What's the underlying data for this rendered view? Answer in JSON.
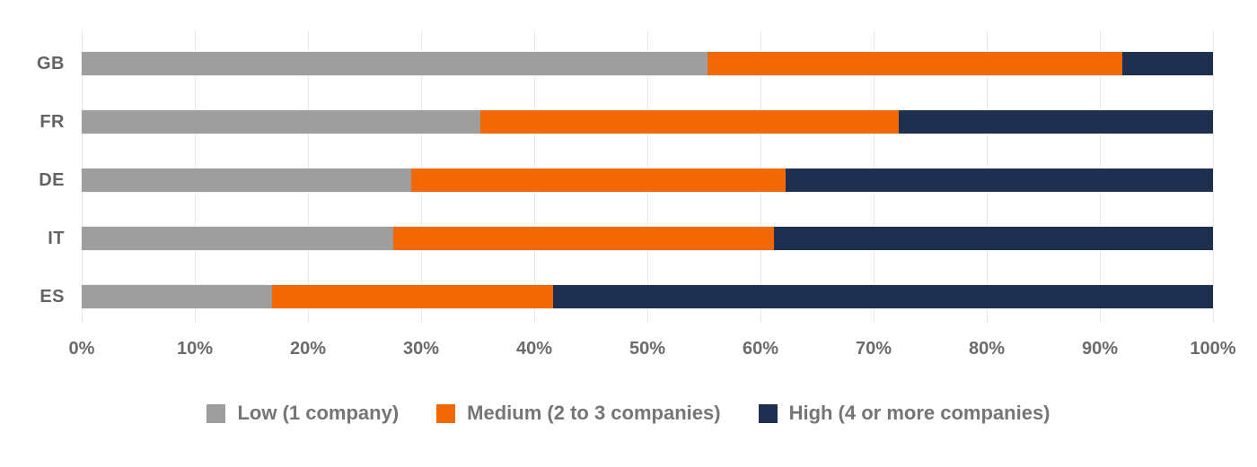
{
  "chart_data": {
    "type": "bar",
    "variant": "horizontal-stacked",
    "title": "",
    "xlabel": "",
    "ylabel": "",
    "categories": [
      "GB",
      "FR",
      "DE",
      "IT",
      "ES"
    ],
    "series": [
      {
        "name": "Low (1 company)",
        "color": "#9e9e9e",
        "values": [
          55.3,
          35.2,
          29.1,
          27.5,
          16.8
        ]
      },
      {
        "name": "Medium (2 to 3 companies)",
        "color": "#f26805",
        "values": [
          36.7,
          37.0,
          33.1,
          33.7,
          24.9
        ]
      },
      {
        "name": "High (4 or more companies)",
        "color": "#1e2f4f",
        "values": [
          8.0,
          27.8,
          37.8,
          38.8,
          58.3
        ]
      }
    ],
    "x_axis": {
      "min": 0,
      "max": 100,
      "tick_values": [
        0,
        10,
        20,
        30,
        40,
        50,
        60,
        70,
        80,
        90,
        100
      ],
      "tick_labels": [
        "0%",
        "10%",
        "20%",
        "30%",
        "40%",
        "50%",
        "60%",
        "70%",
        "80%",
        "90%",
        "100%"
      ]
    },
    "grid": true,
    "legend_position": "bottom"
  },
  "colors": {
    "background": "#ffffff",
    "gridline": "#e9e9e9",
    "category_label": "#636363",
    "tick_label": "#6b6b6b",
    "legend_label": "#757575"
  }
}
